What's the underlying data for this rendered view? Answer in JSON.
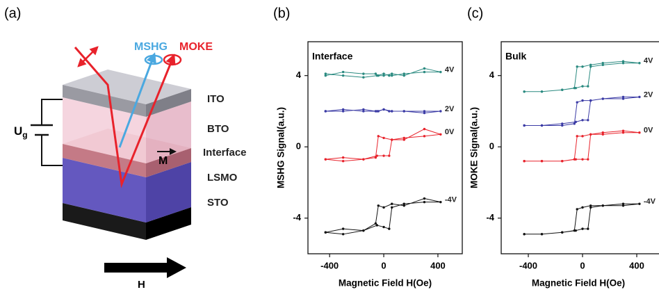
{
  "diagram": {
    "panel_label": "(a)",
    "mshg": "MSHG",
    "moke": "MOKE",
    "ito": "ITO",
    "bto": "BTO",
    "interface": "Interface",
    "magnetization": "M",
    "lsmo": "LSMO",
    "sto": "STO",
    "voltage": {
      "symbol": "U",
      "subscript": "g"
    },
    "field": "H"
  },
  "chart_data": [
    {
      "type": "line",
      "panel_label": "(b)",
      "annotation": "Interface",
      "x_label": "Magnetic Field H(Oe)",
      "y_label": "MSHG Signal(a.u.)",
      "xlim": [
        -560,
        580
      ],
      "ylim": [
        -6,
        5.9
      ],
      "xticks": [
        -400,
        0,
        400
      ],
      "yticks": [
        -4,
        0,
        4
      ],
      "x": [
        -430,
        -300,
        -150,
        -50,
        0,
        40,
        60,
        150,
        300,
        420,
        300,
        150,
        60,
        0,
        -40,
        -60,
        -150,
        -300,
        -430
      ],
      "series": [
        {
          "name": "4V",
          "color": "#2a8a80",
          "values": [
            4.1,
            4.0,
            3.9,
            4.0,
            4.1,
            4.0,
            4.0,
            4.1,
            4.2,
            4.2,
            4.4,
            4.0,
            4.1,
            4.0,
            4.0,
            4.1,
            4.1,
            4.2,
            4.0
          ]
        },
        {
          "name": "2V",
          "color": "#3b3ba5",
          "values": [
            2.0,
            2.1,
            2.0,
            2.0,
            2.1,
            2.0,
            2.0,
            2.0,
            1.9,
            2.0,
            2.0,
            2.0,
            2.0,
            2.1,
            2.0,
            2.0,
            2.1,
            2.0,
            2.0
          ]
        },
        {
          "name": "0V",
          "color": "#e8222b",
          "values": [
            -0.7,
            -0.8,
            -0.7,
            -0.5,
            -0.5,
            -0.5,
            0.4,
            0.5,
            0.6,
            0.7,
            1.0,
            0.4,
            0.4,
            0.5,
            0.6,
            -0.6,
            -0.7,
            -0.6,
            -0.7
          ]
        },
        {
          "name": "-4V",
          "color": "#111111",
          "values": [
            -4.8,
            -4.9,
            -4.7,
            -4.4,
            -4.5,
            -4.6,
            -3.4,
            -3.2,
            -3.1,
            -3.1,
            -2.9,
            -3.3,
            -3.2,
            -3.4,
            -3.3,
            -4.3,
            -4.7,
            -4.6,
            -4.8
          ]
        }
      ]
    },
    {
      "type": "line",
      "panel_label": "(c)",
      "annotation": "Bulk",
      "x_label": "Magnetic Field H(Oe)",
      "y_label": "MOKE Signal(a.u.)",
      "xlim": [
        -600,
        600
      ],
      "ylim": [
        -6,
        5.9
      ],
      "xticks": [
        -400,
        0,
        400
      ],
      "yticks": [
        -4,
        0,
        4
      ],
      "x": [
        -430,
        -300,
        -150,
        -50,
        0,
        40,
        60,
        150,
        300,
        420,
        300,
        150,
        60,
        0,
        -40,
        -60,
        -150,
        -300,
        -430
      ],
      "series": [
        {
          "name": "4V",
          "color": "#2a8a80",
          "values": [
            3.1,
            3.1,
            3.2,
            3.3,
            3.4,
            3.4,
            4.5,
            4.6,
            4.7,
            4.7,
            4.8,
            4.7,
            4.6,
            4.5,
            4.5,
            3.3,
            3.2,
            3.1,
            3.1
          ]
        },
        {
          "name": "2V",
          "color": "#3b3ba5",
          "values": [
            1.2,
            1.2,
            1.3,
            1.4,
            1.5,
            1.5,
            2.6,
            2.7,
            2.7,
            2.8,
            2.8,
            2.7,
            2.6,
            2.6,
            2.5,
            1.3,
            1.2,
            1.2,
            1.2
          ]
        },
        {
          "name": "0V",
          "color": "#e8222b",
          "values": [
            -0.8,
            -0.8,
            -0.8,
            -0.7,
            -0.7,
            -0.7,
            0.7,
            0.7,
            0.8,
            0.8,
            0.9,
            0.8,
            0.7,
            0.6,
            0.6,
            -0.7,
            -0.8,
            -0.8,
            -0.8
          ]
        },
        {
          "name": "-4V",
          "color": "#111111",
          "values": [
            -4.9,
            -4.9,
            -4.8,
            -4.7,
            -4.6,
            -4.6,
            -3.4,
            -3.3,
            -3.3,
            -3.2,
            -3.2,
            -3.3,
            -3.3,
            -3.4,
            -3.5,
            -4.7,
            -4.8,
            -4.9,
            -4.9
          ]
        }
      ]
    }
  ]
}
